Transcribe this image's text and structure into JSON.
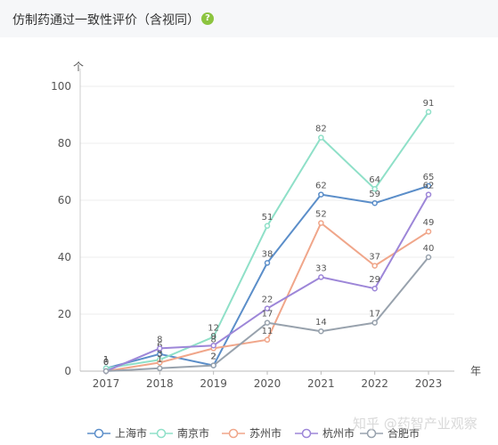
{
  "header": {
    "title": "仿制药通过一致性评价（含视同）",
    "help_icon": "question-circle-icon"
  },
  "watermark": "知乎 @药智产业观察",
  "chart_data": {
    "type": "line",
    "title": "仿制药通过一致性评价（含视同）",
    "y_unit": "个",
    "x_unit": "年",
    "x": [
      "2017",
      "2018",
      "2019",
      "2020",
      "2021",
      "2022",
      "2023"
    ],
    "ylim": [
      0,
      100
    ],
    "yticks": [
      0,
      20,
      40,
      60,
      80,
      100
    ],
    "grid": true,
    "legend_position": "bottom",
    "series": [
      {
        "name": "上海市",
        "color": "#5b8ec9",
        "values": [
          1,
          6,
          2,
          38,
          62,
          59,
          65
        ]
      },
      {
        "name": "南京市",
        "color": "#8fe0c8",
        "values": [
          1,
          4,
          12,
          51,
          82,
          64,
          91
        ]
      },
      {
        "name": "苏州市",
        "color": "#f0a68a",
        "values": [
          0,
          3,
          8,
          11,
          52,
          37,
          49
        ]
      },
      {
        "name": "杭州市",
        "color": "#9d86d8",
        "values": [
          0,
          8,
          9,
          22,
          33,
          29,
          62
        ]
      },
      {
        "name": "合肥市",
        "color": "#98a2ad",
        "values": [
          0,
          1,
          2,
          17,
          14,
          17,
          40
        ]
      }
    ]
  }
}
